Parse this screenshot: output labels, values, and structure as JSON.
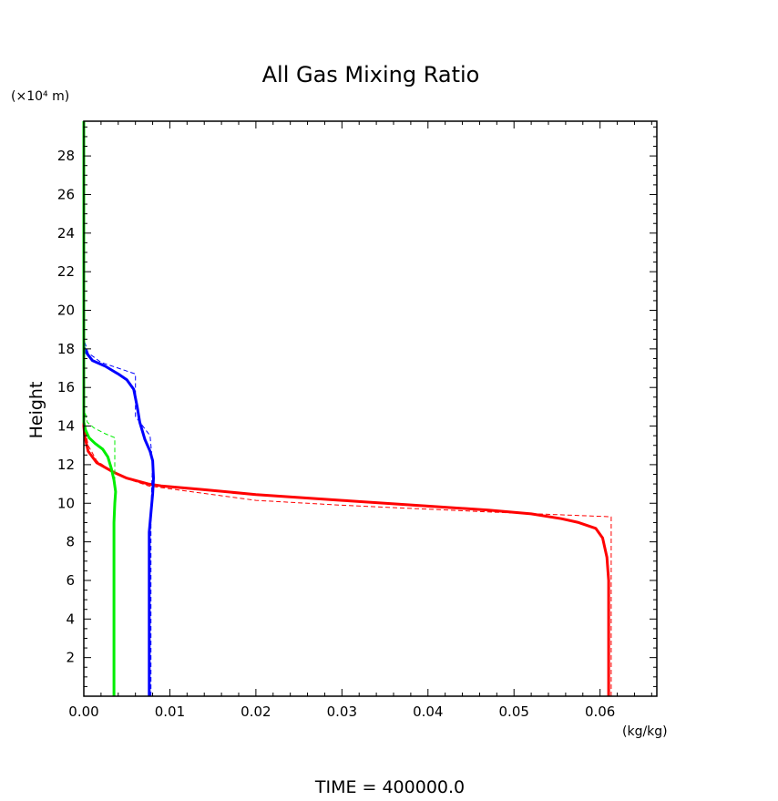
{
  "chart_data": {
    "type": "line",
    "title": "All Gas Mixing Ratio",
    "ylabel": "Height",
    "y_unit_label": "(×10⁴ m)",
    "x_unit_label": "(kg/kg)",
    "footer": "TIME = 400000.0",
    "xlim": [
      0.0,
      0.0666
    ],
    "ylim": [
      0.0,
      29.8
    ],
    "x_ticks": [
      0.0,
      0.01,
      0.02,
      0.03,
      0.04,
      0.05,
      0.06
    ],
    "x_tick_labels": [
      "0.00",
      "0.01",
      "0.02",
      "0.03",
      "0.04",
      "0.05",
      "0.06"
    ],
    "y_ticks": [
      2,
      4,
      6,
      8,
      10,
      12,
      14,
      16,
      18,
      20,
      22,
      24,
      26,
      28
    ],
    "y_tick_labels": [
      "2",
      "4",
      "6",
      "8",
      "10",
      "12",
      "14",
      "16",
      "18",
      "20",
      "22",
      "24",
      "26",
      "28"
    ],
    "grid": false,
    "legend": "none",
    "series": [
      {
        "color": "#ff0000",
        "style": "solid",
        "width": 3,
        "points": [
          [
            0.061,
            0.0
          ],
          [
            0.061,
            6.0
          ],
          [
            0.0608,
            7.2
          ],
          [
            0.0603,
            8.2
          ],
          [
            0.0595,
            8.7
          ],
          [
            0.0575,
            9.0
          ],
          [
            0.0555,
            9.2
          ],
          [
            0.052,
            9.45
          ],
          [
            0.047,
            9.65
          ],
          [
            0.04,
            9.85
          ],
          [
            0.03,
            10.15
          ],
          [
            0.02,
            10.45
          ],
          [
            0.014,
            10.7
          ],
          [
            0.009,
            10.9
          ],
          [
            0.0075,
            11.0
          ],
          [
            0.005,
            11.3
          ],
          [
            0.0035,
            11.6
          ],
          [
            0.0015,
            12.1
          ],
          [
            0.0005,
            12.7
          ],
          [
            0.0001,
            13.5
          ],
          [
            0.0,
            14.0
          ],
          [
            0.0,
            29.8
          ]
        ]
      },
      {
        "color": "#ff0000",
        "style": "dashed",
        "width": 1,
        "points": [
          [
            0.0613,
            0.0
          ],
          [
            0.0613,
            9.3
          ],
          [
            0.047,
            9.55
          ],
          [
            0.03,
            9.9
          ],
          [
            0.02,
            10.15
          ],
          [
            0.01,
            10.75
          ],
          [
            0.0075,
            10.9
          ],
          [
            0.0055,
            11.2
          ],
          [
            0.0035,
            11.6
          ],
          [
            0.0015,
            12.2
          ],
          [
            0.0005,
            13.0
          ],
          [
            0.0001,
            14.0
          ],
          [
            0.0,
            14.5
          ]
        ]
      },
      {
        "color": "#0000ff",
        "style": "solid",
        "width": 3,
        "points": [
          [
            0.0076,
            0.0
          ],
          [
            0.0076,
            8.5
          ],
          [
            0.0078,
            9.5
          ],
          [
            0.008,
            10.5
          ],
          [
            0.0081,
            11.3
          ],
          [
            0.008,
            12.2
          ],
          [
            0.0077,
            12.7
          ],
          [
            0.0071,
            13.3
          ],
          [
            0.0065,
            14.2
          ],
          [
            0.0062,
            15.0
          ],
          [
            0.0058,
            15.9
          ],
          [
            0.005,
            16.4
          ],
          [
            0.004,
            16.7
          ],
          [
            0.0025,
            17.1
          ],
          [
            0.001,
            17.4
          ],
          [
            0.0003,
            17.8
          ],
          [
            0.0,
            18.1
          ]
        ]
      },
      {
        "color": "#0000ff",
        "style": "dashed",
        "width": 1,
        "points": [
          [
            0.0078,
            0.0
          ],
          [
            0.0078,
            9.0
          ],
          [
            0.0079,
            11.0
          ],
          [
            0.008,
            12.0
          ],
          [
            0.0077,
            13.5
          ],
          [
            0.006,
            14.5
          ],
          [
            0.006,
            16.7
          ],
          [
            0.004,
            17.0
          ],
          [
            0.002,
            17.3
          ],
          [
            0.0005,
            17.8
          ],
          [
            0.0,
            18.5
          ],
          [
            0.0,
            19.2
          ]
        ]
      },
      {
        "color": "#00ee00",
        "style": "solid",
        "width": 3,
        "points": [
          [
            0.0035,
            0.0
          ],
          [
            0.0035,
            9.0
          ],
          [
            0.0036,
            10.0
          ],
          [
            0.0037,
            10.6
          ],
          [
            0.0035,
            11.2
          ],
          [
            0.0032,
            11.8
          ],
          [
            0.0028,
            12.4
          ],
          [
            0.0022,
            12.8
          ],
          [
            0.0013,
            13.1
          ],
          [
            0.0006,
            13.4
          ],
          [
            0.0002,
            13.8
          ],
          [
            0.0,
            14.2
          ],
          [
            0.0,
            29.8
          ]
        ]
      },
      {
        "color": "#00ee00",
        "style": "dashed",
        "width": 1,
        "points": [
          [
            0.0036,
            10.0
          ],
          [
            0.0036,
            13.4
          ],
          [
            0.0025,
            13.6
          ],
          [
            0.0012,
            13.9
          ],
          [
            0.0004,
            14.2
          ],
          [
            0.0,
            15.0
          ]
        ]
      }
    ]
  }
}
